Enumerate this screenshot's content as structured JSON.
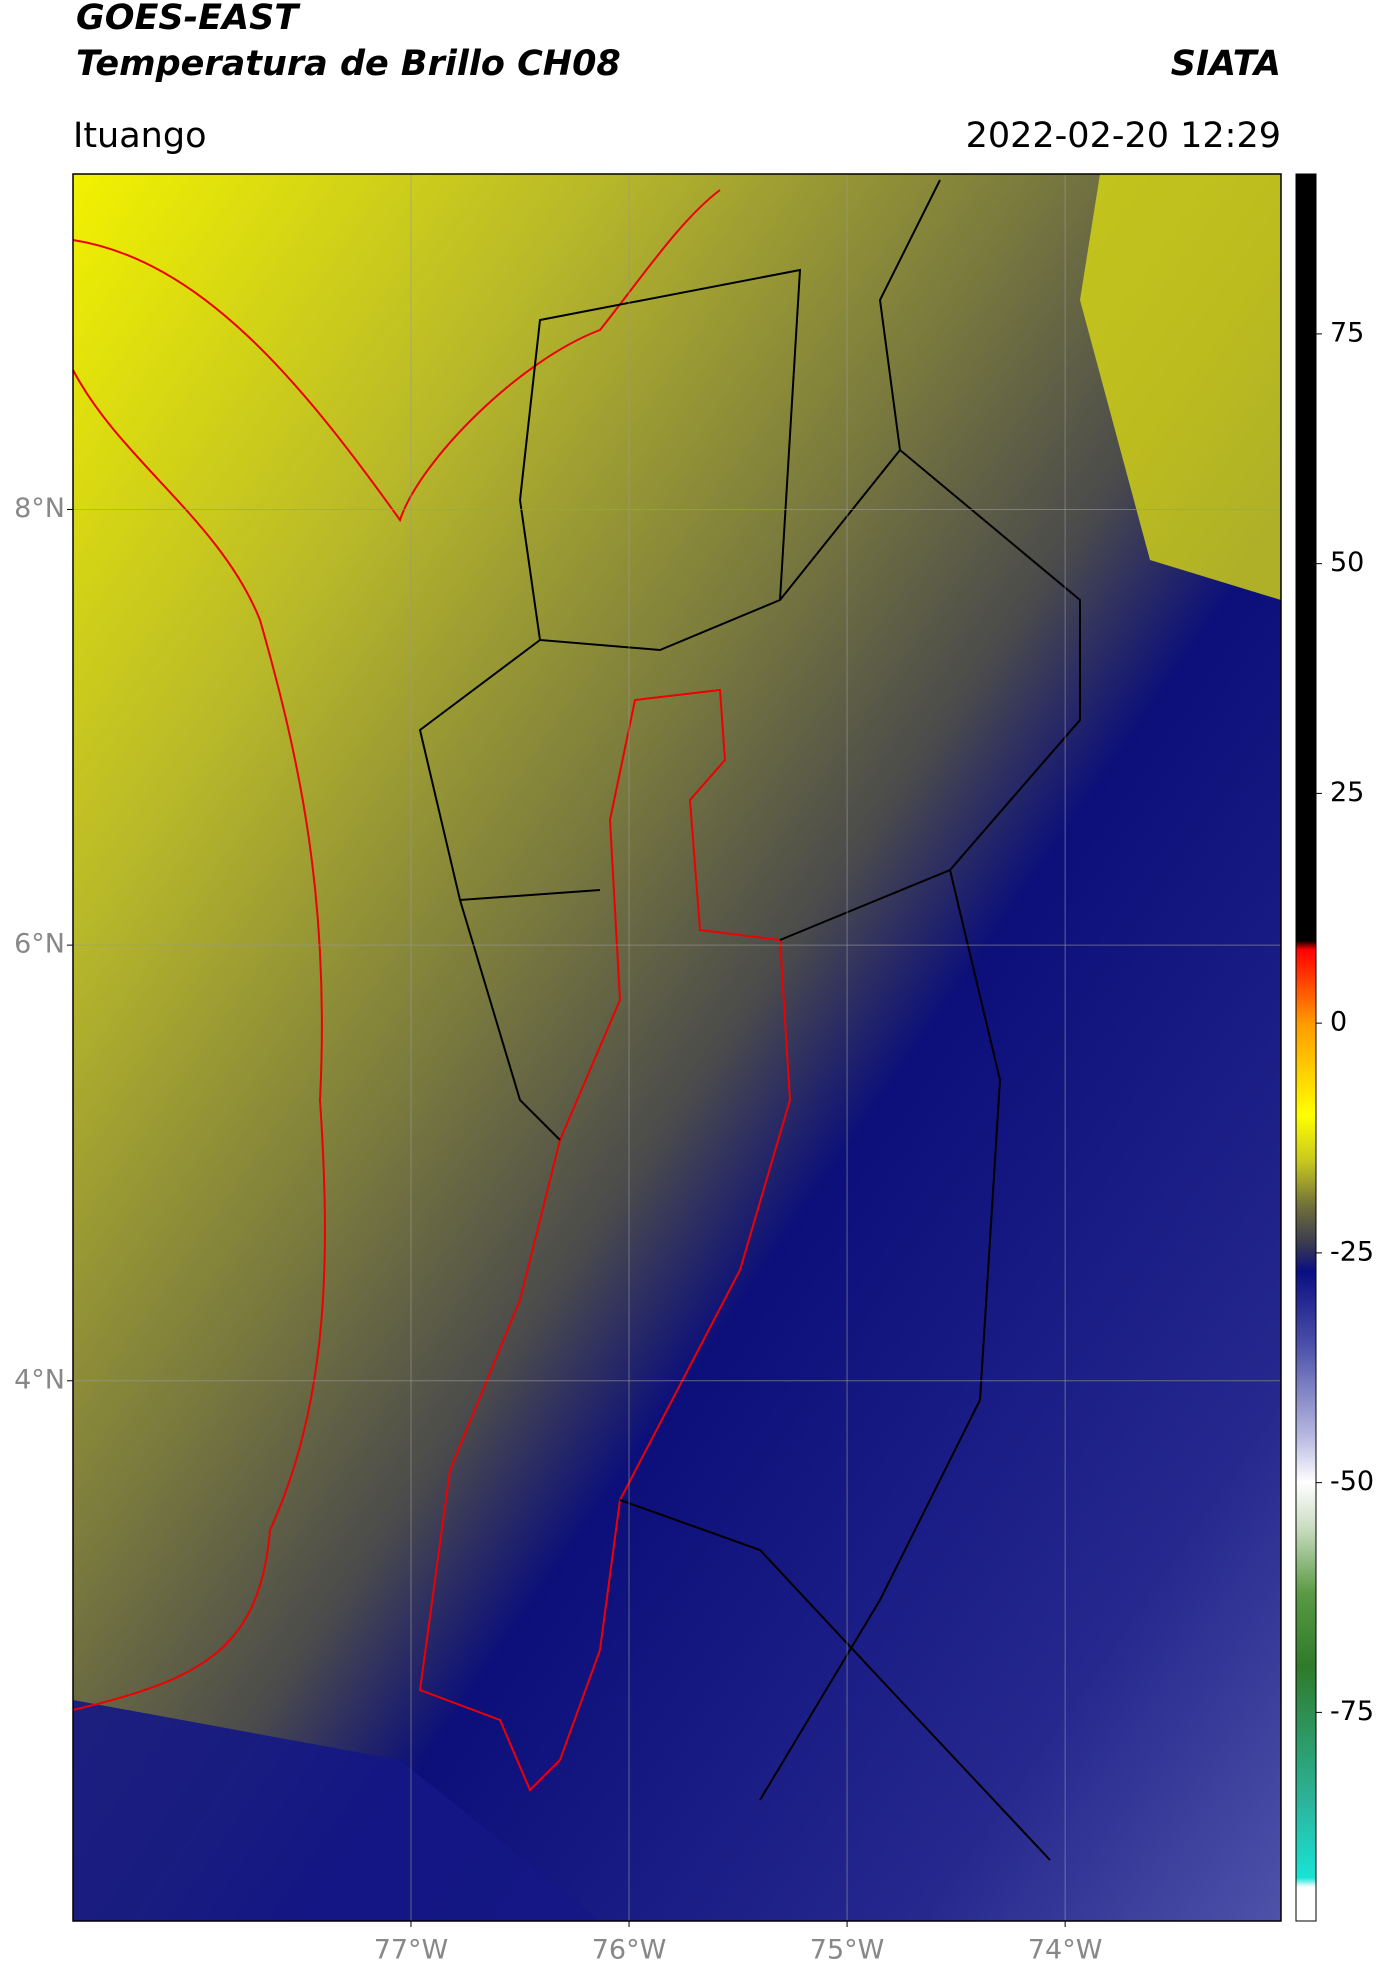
{
  "chart_data": {
    "type": "map",
    "title": "GOES-EAST",
    "subtitle": "Temperatura de Brillo CH08",
    "source": "SIATA",
    "location": "Ituango",
    "timestamp": "2022-02-20 12:29",
    "xlim": [
      -78.55,
      -73.01
    ],
    "xticks": [
      {
        "value": -77,
        "label": "77°W"
      },
      {
        "value": -76,
        "label": "76°W"
      },
      {
        "value": -75,
        "label": "75°W"
      },
      {
        "value": -74,
        "label": "74°W"
      }
    ],
    "ylim": [
      1.52,
      9.54
    ],
    "yticks": [
      {
        "value": 8,
        "label": "8°N"
      },
      {
        "value": 6,
        "label": "6°N"
      },
      {
        "value": 4,
        "label": "4°N"
      }
    ],
    "grid": true,
    "colorbar_lim": [
      -97.7,
      92.4
    ],
    "colorbar_ticks": [
      75,
      50,
      25,
      0,
      -25,
      -50,
      -75
    ],
    "colormap": [
      {
        "value": -97.7,
        "color": "#ffffff"
      },
      {
        "value": -94,
        "color": "#ffffff"
      },
      {
        "value": -93,
        "color": "#19e3d6"
      },
      {
        "value": -85,
        "color": "#2bb59c"
      },
      {
        "value": -70,
        "color": "#2f7a2a"
      },
      {
        "value": -62,
        "color": "#5a9a44"
      },
      {
        "value": -55,
        "color": "#c8dcc0"
      },
      {
        "value": -50,
        "color": "#ffffff"
      },
      {
        "value": -45,
        "color": "#b7b9e0"
      },
      {
        "value": -35,
        "color": "#4b4fa8"
      },
      {
        "value": -27,
        "color": "#0b0e82"
      },
      {
        "value": -24,
        "color": "#3a3a50"
      },
      {
        "value": -20,
        "color": "#6e6e3a"
      },
      {
        "value": -15,
        "color": "#c8c81e"
      },
      {
        "value": -10,
        "color": "#ffff00"
      },
      {
        "value": 0,
        "color": "#ff9a00"
      },
      {
        "value": 8,
        "color": "#ff0000"
      },
      {
        "value": 9,
        "color": "#000000"
      },
      {
        "value": 92.4,
        "color": "#000000"
      }
    ]
  }
}
